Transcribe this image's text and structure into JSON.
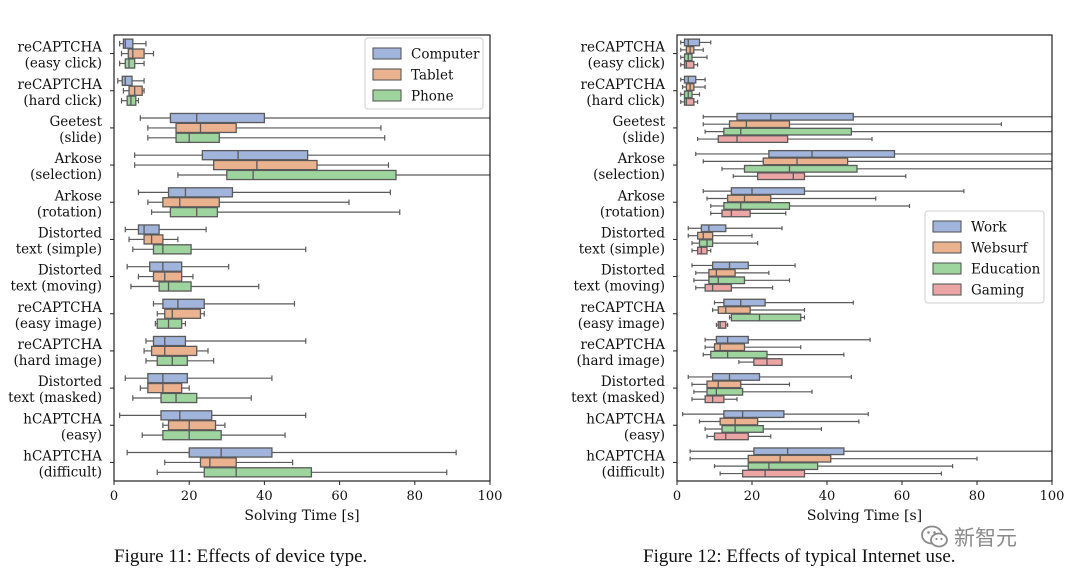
{
  "charts": [
    {
      "caption": "Figure 11: Effects of device type.",
      "chart_data": {
        "type": "box",
        "orientation": "horizontal",
        "xlabel": "Solving Time [s]",
        "xlim": [
          0,
          100
        ],
        "xticks": [
          0,
          20,
          40,
          60,
          80,
          100
        ],
        "legend_position": "upper-right",
        "categories": [
          [
            "reCAPTCHA",
            "(easy click)"
          ],
          [
            "reCAPTCHA",
            "(hard click)"
          ],
          [
            "Geetest",
            "(slide)"
          ],
          [
            "Arkose",
            "(selection)"
          ],
          [
            "Arkose",
            "(rotation)"
          ],
          [
            "Distorted",
            "text (simple)"
          ],
          [
            "Distorted",
            "text (moving)"
          ],
          [
            "reCAPTCHA",
            "(easy image)"
          ],
          [
            "reCAPTCHA",
            "(hard image)"
          ],
          [
            "Distorted",
            "text (masked)"
          ],
          [
            "hCAPTCHA",
            "(easy)"
          ],
          [
            "hCAPTCHA",
            "(difficult)"
          ]
        ],
        "series": [
          {
            "name": "Computer",
            "color": "#a1b4db",
            "boxes": [
              [
                1.5,
                2.5,
                3,
                5,
                8.5
              ],
              [
                1,
                2.2,
                3,
                4.8,
                8
              ],
              [
                7,
                15,
                22,
                40,
                100
              ],
              [
                5.5,
                23.5,
                33,
                51.5,
                100
              ],
              [
                6.5,
                14.5,
                19,
                31.5,
                73.5
              ],
              [
                3,
                6.5,
                8,
                12,
                24.5
              ],
              [
                3.5,
                9.5,
                13,
                18,
                30.5
              ],
              [
                10.5,
                13,
                17,
                24,
                48
              ],
              [
                8.5,
                10.5,
                13.5,
                19,
                51
              ],
              [
                3,
                9,
                13,
                19.5,
                42
              ],
              [
                1.5,
                12.5,
                17.5,
                26,
                51
              ],
              [
                3.5,
                20,
                28.5,
                42,
                91
              ]
            ]
          },
          {
            "name": "Tablet",
            "color": "#ebb28f",
            "boxes": [
              [
                2,
                3.8,
                5,
                8,
                10.5
              ],
              [
                2.5,
                4,
                5.5,
                7.5,
                8
              ],
              [
                9,
                16.5,
                23,
                32.5,
                71
              ],
              [
                5.5,
                26.5,
                38,
                54,
                73
              ],
              [
                9,
                13,
                17.5,
                28,
                62.5
              ],
              [
                4,
                8,
                10,
                13,
                17
              ],
              [
                6.5,
                10.5,
                13.5,
                18,
                21
              ],
              [
                11.5,
                13.5,
                15.5,
                23,
                24
              ],
              [
                8,
                10,
                13.5,
                22,
                25
              ],
              [
                7,
                9,
                13,
                18,
                20
              ],
              [
                13,
                14.5,
                20,
                27,
                29.5
              ],
              [
                13.5,
                23,
                25.5,
                32.5,
                47.5
              ]
            ]
          },
          {
            "name": "Phone",
            "color": "#9ed59e",
            "boxes": [
              [
                1.5,
                3,
                4,
                5.5,
                8
              ],
              [
                2,
                3.5,
                4.5,
                5.8,
                6.5
              ],
              [
                9,
                16.5,
                20,
                28,
                72
              ],
              [
                17,
                30,
                37,
                75,
                100
              ],
              [
                10,
                15,
                22,
                27.5,
                76
              ],
              [
                5,
                10.5,
                13,
                20.5,
                51
              ],
              [
                4.5,
                12,
                14.5,
                20.5,
                38.5
              ],
              [
                11,
                11.5,
                14.5,
                18,
                19
              ],
              [
                8.5,
                11.5,
                15.5,
                19.5,
                26.5
              ],
              [
                5,
                12.5,
                16.5,
                22,
                36.5
              ],
              [
                7.5,
                13,
                20,
                28.5,
                45.5
              ],
              [
                11.5,
                24,
                32.5,
                52.5,
                88.5
              ]
            ]
          }
        ]
      }
    },
    {
      "caption": "Figure 12: Effects of typical Internet use.",
      "chart_data": {
        "type": "box",
        "orientation": "horizontal",
        "xlabel": "Solving Time [s]",
        "xlim": [
          0,
          100
        ],
        "xticks": [
          0,
          20,
          40,
          60,
          80,
          100
        ],
        "legend_position": "center-right",
        "categories": [
          [
            "reCAPTCHA",
            "(easy click)"
          ],
          [
            "reCAPTCHA",
            "(hard click)"
          ],
          [
            "Geetest",
            "(slide)"
          ],
          [
            "Arkose",
            "(selection)"
          ],
          [
            "Arkose",
            "(rotation)"
          ],
          [
            "Distorted",
            "text (simple)"
          ],
          [
            "Distorted",
            "text (moving)"
          ],
          [
            "reCAPTCHA",
            "(easy image)"
          ],
          [
            "reCAPTCHA",
            "(hard image)"
          ],
          [
            "Distorted",
            "text (masked)"
          ],
          [
            "hCAPTCHA",
            "(easy)"
          ],
          [
            "hCAPTCHA",
            "(difficult)"
          ]
        ],
        "series": [
          {
            "name": "Work",
            "color": "#a1b4db",
            "boxes": [
              [
                1,
                2,
                3,
                6,
                9
              ],
              [
                1,
                2,
                3,
                5,
                7.5
              ],
              [
                7,
                16,
                25,
                47,
                100
              ],
              [
                5,
                24.5,
                36,
                58,
                100
              ],
              [
                7,
                14.5,
                20,
                34,
                76.5
              ],
              [
                3,
                6.5,
                8.5,
                13,
                28
              ],
              [
                4,
                9.5,
                14,
                19,
                31.5
              ],
              [
                10,
                12.5,
                17,
                23.5,
                47
              ],
              [
                7.5,
                10.5,
                13.5,
                19,
                51.5
              ],
              [
                3,
                9.5,
                14,
                22,
                46.5
              ],
              [
                1.5,
                12.5,
                17.5,
                28.5,
                51
              ],
              [
                3.5,
                20.5,
                29.5,
                44.5,
                100
              ]
            ]
          },
          {
            "name": "Websurf",
            "color": "#ebb28f",
            "boxes": [
              [
                1,
                2.5,
                3.5,
                4.5,
                7
              ],
              [
                1.5,
                2.5,
                3.5,
                4.5,
                7.5
              ],
              [
                7,
                14,
                18.5,
                30,
                86.5
              ],
              [
                7,
                23,
                32,
                45.5,
                100
              ],
              [
                8,
                13.5,
                18,
                25,
                53
              ],
              [
                3,
                5.5,
                7,
                9.5,
                20
              ],
              [
                5,
                8.5,
                10.5,
                15.5,
                24.5
              ],
              [
                9.5,
                11,
                13,
                19.5,
                34
              ],
              [
                7.5,
                10,
                11.5,
                18,
                33
              ],
              [
                4,
                8,
                11,
                17,
                30
              ],
              [
                6,
                11.5,
                15.5,
                21.5,
                48.5
              ],
              [
                3.5,
                19,
                27.5,
                41,
                80
              ]
            ]
          },
          {
            "name": "Education",
            "color": "#9ed59e",
            "boxes": [
              [
                1,
                2,
                3,
                4,
                8
              ],
              [
                1,
                2,
                3,
                4,
                6
              ],
              [
                7.5,
                12.5,
                17,
                46.5,
                100
              ],
              [
                12,
                18,
                30,
                48,
                100
              ],
              [
                9,
                12.5,
                17,
                30,
                62
              ],
              [
                4,
                6,
                8,
                9.5,
                21.5
              ],
              [
                4.5,
                8.5,
                11,
                18,
                30
              ],
              [
                14,
                14.5,
                22,
                33,
                34
              ],
              [
                7,
                9,
                13.5,
                24,
                44.5
              ],
              [
                4.5,
                8,
                10.5,
                17.5,
                36
              ],
              [
                7.5,
                12,
                15.5,
                23,
                38.5
              ],
              [
                10,
                19,
                24.5,
                37.5,
                73.5
              ]
            ]
          },
          {
            "name": "Gaming",
            "color": "#eba5a5",
            "boxes": [
              [
                1,
                2,
                2.5,
                4.5,
                5.5
              ],
              [
                1,
                2,
                2.5,
                4.5,
                5.5
              ],
              [
                5.5,
                11,
                16,
                29.5,
                52
              ],
              [
                15,
                21.5,
                31,
                34,
                61
              ],
              [
                9,
                12,
                14.5,
                19.5,
                29
              ],
              [
                4,
                5.5,
                6.5,
                8,
                9
              ],
              [
                5,
                7.5,
                9.5,
                14.5,
                25.5
              ],
              [
                10.5,
                11,
                11.5,
                13,
                13.5
              ],
              [
                16.5,
                20.5,
                24,
                28,
                28
              ],
              [
                4,
                7.5,
                9.5,
                12.5,
                16
              ],
              [
                8,
                10,
                13,
                19,
                25
              ],
              [
                11.5,
                17.5,
                23.5,
                34,
                70.5
              ]
            ]
          }
        ]
      }
    }
  ],
  "watermark": {
    "text": "新智元",
    "icon": "wechat-icon"
  }
}
